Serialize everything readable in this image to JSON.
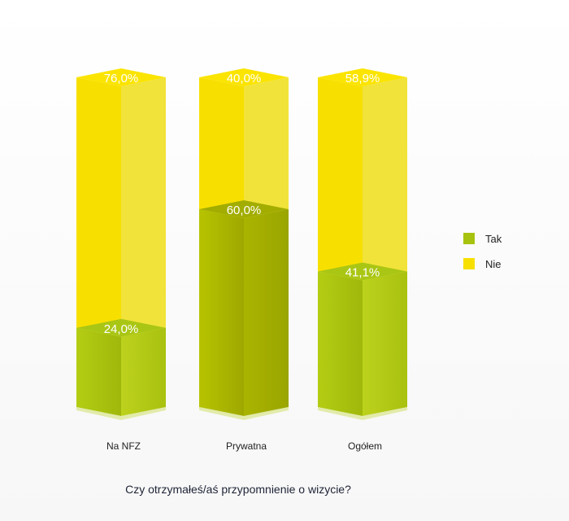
{
  "chart_data": {
    "type": "bar",
    "stacked": true,
    "style": "3d-cylinder",
    "title": "Czy otrzymałeś/aś przypomnienie o wizycie?",
    "categories": [
      "Na NFZ",
      "Prywatna",
      "Ogółem"
    ],
    "series": [
      {
        "name": "Tak",
        "values": [
          24.0,
          60.0,
          41.1
        ],
        "labels": [
          "24,0%",
          "60,0%",
          "41,1%"
        ],
        "color": "#a8c30f"
      },
      {
        "name": "Nie",
        "values": [
          76.0,
          40.0,
          58.9
        ],
        "labels": [
          "76,0%",
          "40,0%",
          "58,9%"
        ],
        "color": "#f7e000"
      }
    ],
    "ylim": [
      0,
      100
    ],
    "legend_position": "right",
    "grid": false
  }
}
